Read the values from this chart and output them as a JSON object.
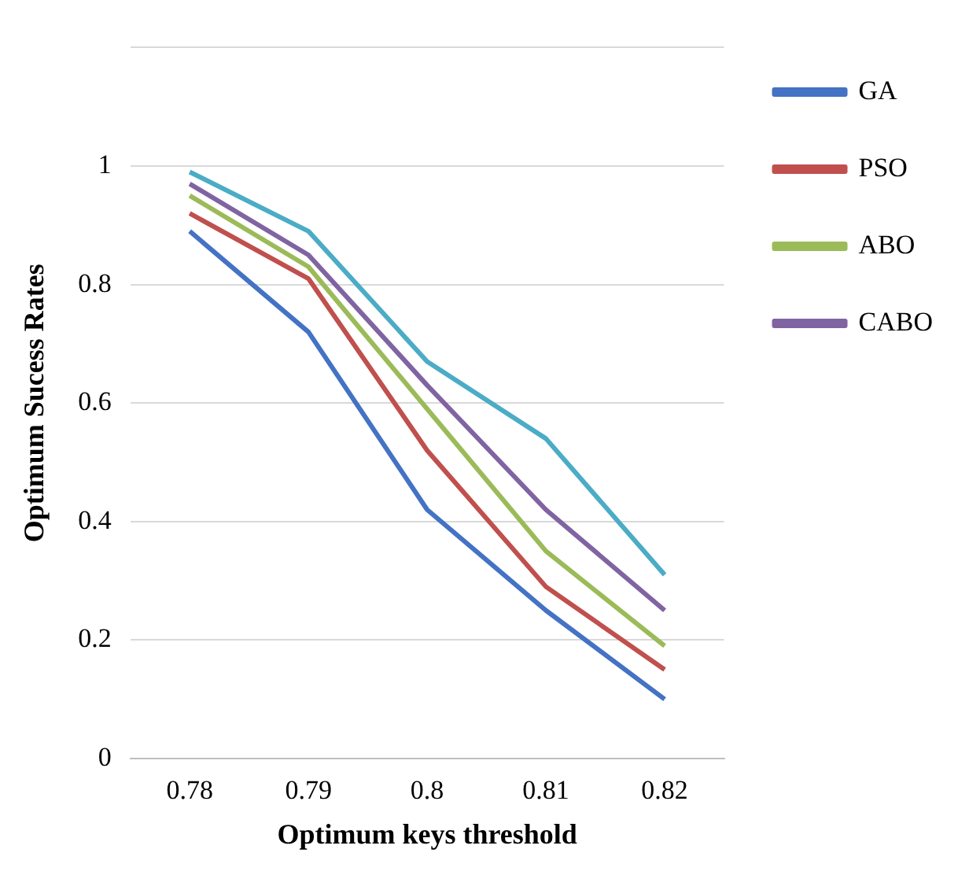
{
  "chart_data": {
    "type": "line",
    "xlabel": "Optimum keys threshold",
    "ylabel": "Optimum Sucess Rates",
    "categories": [
      "0.78",
      "0.79",
      "0.8",
      "0.81",
      "0.82"
    ],
    "series": [
      {
        "name": "GA",
        "color": "#4472c4",
        "values": [
          0.89,
          0.72,
          0.42,
          0.25,
          0.1
        ]
      },
      {
        "name": "PSO",
        "color": "#c0504d",
        "values": [
          0.92,
          0.81,
          0.52,
          0.29,
          0.15
        ]
      },
      {
        "name": "ABO",
        "color": "#9bbb59",
        "values": [
          0.95,
          0.83,
          0.59,
          0.35,
          0.19
        ]
      },
      {
        "name": "CABO",
        "color": "#8064a2",
        "values": [
          0.97,
          0.85,
          0.63,
          0.42,
          0.25
        ]
      },
      {
        "color": "#4bacc6",
        "values": [
          0.99,
          0.89,
          0.67,
          0.54,
          0.31
        ]
      }
    ],
    "ylim": [
      0,
      1.2
    ],
    "yticks": [
      0,
      0.2,
      0.4,
      0.6,
      0.8,
      1,
      {
        "value": 1.2,
        "label": null
      }
    ],
    "grid": "y",
    "legend": "top right",
    "marker": "none",
    "line_style": "solid"
  }
}
